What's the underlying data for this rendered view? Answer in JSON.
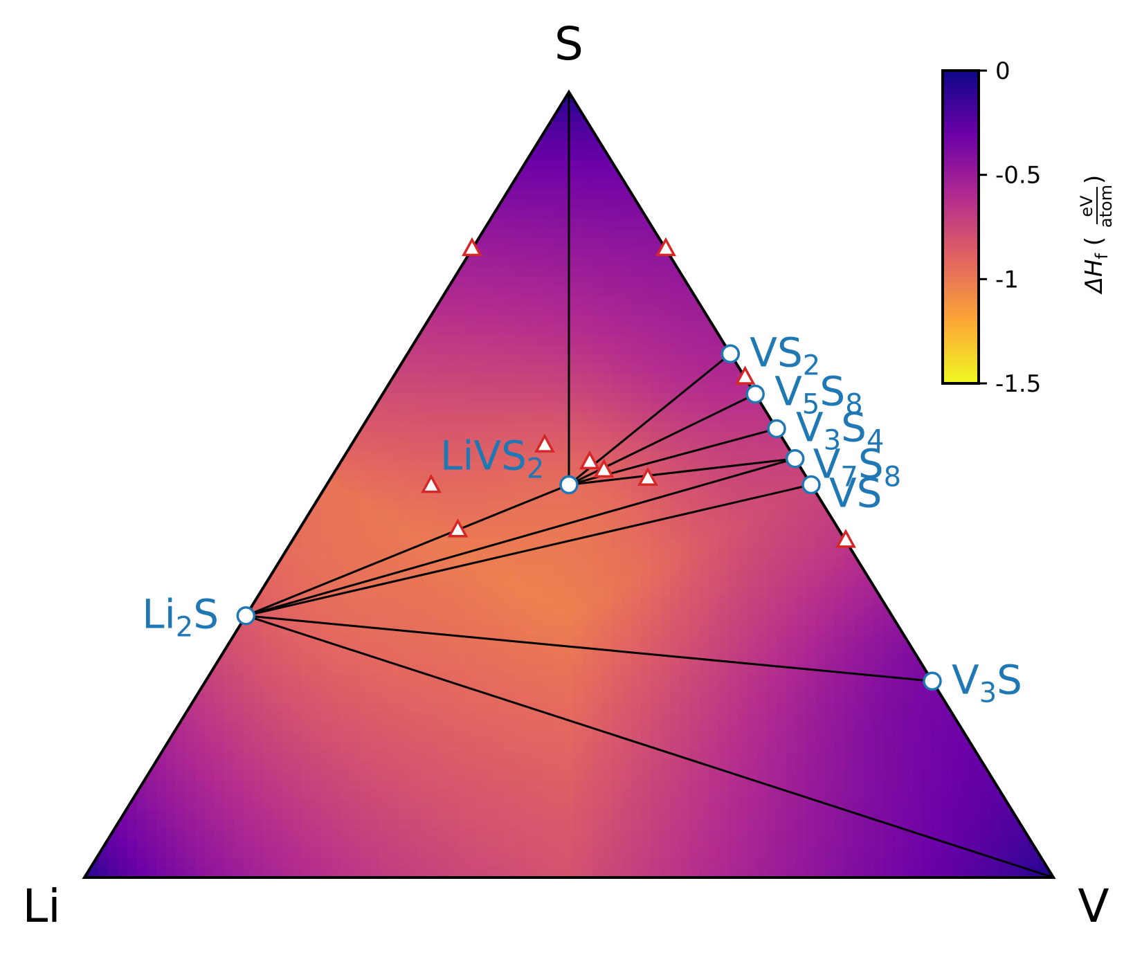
{
  "chart_data": {
    "type": "ternary-phase-diagram",
    "corners": {
      "top": "S",
      "left": "Li",
      "right": "V"
    },
    "stable_phases": [
      {
        "name": "LiVS2",
        "main": "LiVS",
        "sub": "2",
        "tail": "",
        "composition": {
          "Li": 0.25,
          "V": 0.25,
          "S": 0.5
        }
      },
      {
        "name": "Li2S",
        "main": "Li",
        "sub": "2",
        "tail": "S",
        "composition": {
          "Li": 0.6667,
          "V": 0.0,
          "S": 0.3333
        }
      },
      {
        "name": "VS2",
        "main": "VS",
        "sub": "2",
        "tail": "",
        "composition": {
          "Li": 0.0,
          "V": 0.3333,
          "S": 0.6667
        }
      },
      {
        "name": "V5S8",
        "main": "V",
        "sub": "5",
        "tail": "S",
        "sub2": "8",
        "composition": {
          "Li": 0.0,
          "V": 0.3846,
          "S": 0.6154
        }
      },
      {
        "name": "V3S4",
        "main": "V",
        "sub": "3",
        "tail": "S",
        "sub2": "4",
        "composition": {
          "Li": 0.0,
          "V": 0.4286,
          "S": 0.5714
        }
      },
      {
        "name": "V7S8",
        "main": "V",
        "sub": "7",
        "tail": "S",
        "sub2": "8",
        "composition": {
          "Li": 0.0,
          "V": 0.4667,
          "S": 0.5333
        }
      },
      {
        "name": "VS",
        "main": "VS",
        "sub": "",
        "tail": "",
        "composition": {
          "Li": 0.0,
          "V": 0.5,
          "S": 0.5
        }
      },
      {
        "name": "V3S",
        "main": "V",
        "sub": "3",
        "tail": "S",
        "composition": {
          "Li": 0.0,
          "V": 0.75,
          "S": 0.25
        }
      }
    ],
    "unstable_phases": [
      {
        "composition": {
          "Li": 0.2,
          "V": 0.0,
          "S": 0.8
        }
      },
      {
        "composition": {
          "Li": 0.0,
          "V": 0.2,
          "S": 0.8
        }
      },
      {
        "composition": {
          "Li": 0.0,
          "V": 0.3636,
          "S": 0.6364
        }
      },
      {
        "composition": {
          "Li": 0.25,
          "V": 0.2,
          "S": 0.55
        }
      },
      {
        "composition": {
          "Li": 0.2143,
          "V": 0.2571,
          "S": 0.5286
        }
      },
      {
        "composition": {
          "Li": 0.2049,
          "V": 0.2771,
          "S": 0.518
        }
      },
      {
        "composition": {
          "Li": 0.1648,
          "V": 0.3276,
          "S": 0.5076
        }
      },
      {
        "composition": {
          "Li": 0.3929,
          "V": 0.1086,
          "S": 0.4985
        }
      },
      {
        "composition": {
          "Li": 0.3937,
          "V": 0.1644,
          "S": 0.4419
        }
      },
      {
        "composition": {
          "Li": 0.0,
          "V": 0.5714,
          "S": 0.4286
        }
      }
    ],
    "tie_lines": [
      [
        "S",
        "LiVS2"
      ],
      [
        "LiVS2",
        "Li2S"
      ],
      [
        "LiVS2",
        "VS2"
      ],
      [
        "LiVS2",
        "V5S8"
      ],
      [
        "LiVS2",
        "V3S4"
      ],
      [
        "LiVS2",
        "V7S8"
      ],
      [
        "Li2S",
        "V7S8"
      ],
      [
        "Li2S",
        "VS"
      ],
      [
        "Li2S",
        "V3S"
      ],
      [
        "Li2S",
        "V"
      ]
    ],
    "colorbar": {
      "label_main": "ΔH",
      "label_sub": "f",
      "unit_num": "eV",
      "unit_den": "atom",
      "range": [
        -1.5,
        0
      ],
      "ticks": [
        "0",
        "-0.5",
        "-1",
        "-1.5"
      ],
      "tick_values": [
        0,
        -0.5,
        -1,
        -1.5
      ],
      "colormap": [
        "#f0f921",
        "#fca636",
        "#e16462",
        "#b12a90",
        "#6a00a8",
        "#0d0887"
      ]
    },
    "colors": {
      "stable_marker_edge": "#1f77b4",
      "unstable_marker_edge": "#d62728",
      "phase_label": "#1f77b4",
      "tie_line": "#000000"
    }
  }
}
